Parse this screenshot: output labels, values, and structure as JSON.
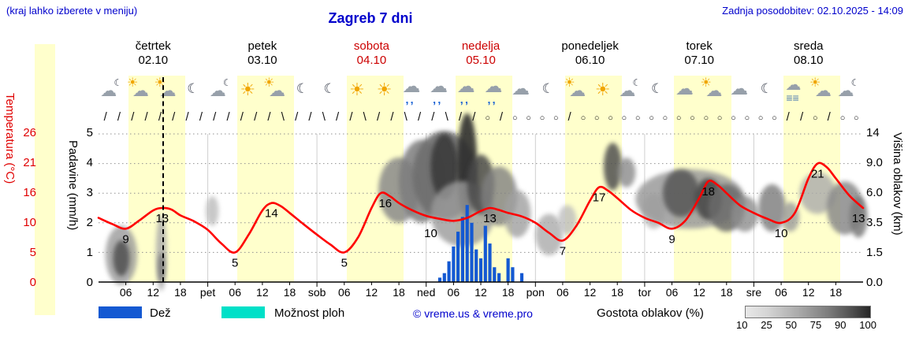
{
  "header": {
    "hint": "(kraj lahko izberete v meniju)",
    "title": "Zagreb 7 dni",
    "updated": "Zadnja posodobitev: 02.10.2025 - 14:09"
  },
  "colors": {
    "accent_blue": "#0000cc",
    "temp_red": "#ff0000",
    "day_band": "#ffffcc",
    "rain_blue": "#1459d2",
    "shower_cyan": "#00e0c8"
  },
  "days": [
    {
      "name": "četrtek",
      "date": "02.10",
      "color": "#000000"
    },
    {
      "name": "petek",
      "date": "03.10",
      "color": "#000000"
    },
    {
      "name": "sobota",
      "date": "04.10",
      "color": "#cc0000"
    },
    {
      "name": "nedelja",
      "date": "05.10",
      "color": "#cc0000"
    },
    {
      "name": "ponedeljek",
      "date": "06.10",
      "color": "#000000"
    },
    {
      "name": "torek",
      "date": "07.10",
      "color": "#000000"
    },
    {
      "name": "sreda",
      "date": "08.10",
      "color": "#000000"
    }
  ],
  "axes": {
    "temperature": {
      "label": "Temperatura (°C)",
      "ticks": [
        "26",
        "21",
        "16",
        "10",
        "5",
        "0"
      ]
    },
    "precip": {
      "label": "Padavine (mm/h)",
      "ticks": [
        "5",
        "4",
        "3",
        "2",
        "1",
        "0"
      ]
    },
    "cloud_height": {
      "label": "Višina oblakov (km)",
      "ticks": [
        "14",
        "9.0",
        "6.0",
        "3.5",
        "1.5",
        "0.0"
      ]
    }
  },
  "legend": {
    "rain_label": "Dež",
    "shower_label": "Možnost ploh",
    "copyright": "© vreme.us & vreme.pro",
    "cloud_density_label": "Gostota oblakov (%)",
    "cloud_density_ticks": [
      "10",
      "25",
      "50",
      "75",
      "90",
      "100"
    ]
  },
  "icons": [
    "cloud-moon",
    "sun-cloud",
    "sun-cloud",
    "moon",
    "cloud-moon",
    "sun",
    "sun-cloud",
    "moon",
    "moon",
    "sun",
    "sun",
    "rain-cloud",
    "rain-cloud",
    "rain-cloud",
    "rain-cloud",
    "cloud",
    "moon",
    "sun-cloud",
    "sun",
    "cloud-moon",
    "moon",
    "cloud",
    "sun-cloud",
    "cloud",
    "moon",
    "fog-cloud",
    "sun-cloud",
    "cloud-moon"
  ],
  "winds": [
    "/",
    "/",
    "/",
    "/",
    "/",
    "/",
    "/",
    "/",
    "/",
    "/",
    "/",
    "/",
    "/",
    "\\",
    "/",
    "/",
    "\\",
    "/",
    "/",
    "\\",
    "/",
    "/",
    "\\",
    "/",
    "/",
    "\\",
    "/",
    "/",
    "○",
    "/",
    "○",
    "○",
    "○",
    "○",
    "/",
    "○",
    "○",
    "○",
    "○",
    "○",
    "○",
    "○",
    "○",
    "○",
    "○",
    "○",
    "○",
    "○",
    "○",
    "○",
    "/",
    "/",
    "○",
    "/",
    "○",
    "○"
  ],
  "chart_data": {
    "type": "meteogram",
    "title": "Zagreb 7 dni",
    "hours_total": 168,
    "now_hour": 14,
    "temp_axis_stops": [
      0,
      5,
      10,
      16,
      21,
      26
    ],
    "day_bands": [
      [
        6.5,
        19
      ],
      [
        30.5,
        43
      ],
      [
        54.5,
        67
      ],
      [
        78.5,
        91
      ],
      [
        102.5,
        115
      ],
      [
        126.5,
        139
      ],
      [
        150.5,
        163
      ]
    ],
    "x_ticks": [
      [
        6,
        "06"
      ],
      [
        12,
        "12"
      ],
      [
        18,
        "18"
      ],
      [
        24,
        "pet"
      ],
      [
        30,
        "06"
      ],
      [
        36,
        "12"
      ],
      [
        42,
        "18"
      ],
      [
        48,
        "sob"
      ],
      [
        54,
        "06"
      ],
      [
        60,
        "12"
      ],
      [
        66,
        "18"
      ],
      [
        72,
        "ned"
      ],
      [
        78,
        "06"
      ],
      [
        84,
        "12"
      ],
      [
        90,
        "18"
      ],
      [
        96,
        "pon"
      ],
      [
        102,
        "06"
      ],
      [
        108,
        "12"
      ],
      [
        114,
        "18"
      ],
      [
        120,
        "tor"
      ],
      [
        126,
        "06"
      ],
      [
        132,
        "12"
      ],
      [
        138,
        "18"
      ],
      [
        144,
        "sre"
      ],
      [
        150,
        "06"
      ],
      [
        156,
        "12"
      ],
      [
        162,
        "18"
      ]
    ],
    "temperature_series": {
      "unit": "°C",
      "points": [
        [
          0,
          11
        ],
        [
          3,
          9.8
        ],
        [
          6,
          9
        ],
        [
          9,
          10.5
        ],
        [
          12,
          12.5
        ],
        [
          14,
          13
        ],
        [
          16,
          12.7
        ],
        [
          18,
          11.5
        ],
        [
          21,
          10.3
        ],
        [
          24,
          8.8
        ],
        [
          27,
          6.5
        ],
        [
          30,
          5
        ],
        [
          33,
          8
        ],
        [
          36,
          12.5
        ],
        [
          38,
          14
        ],
        [
          40,
          13.4
        ],
        [
          42,
          12
        ],
        [
          45,
          9.8
        ],
        [
          48,
          8
        ],
        [
          51,
          6.3
        ],
        [
          54,
          5
        ],
        [
          57,
          7.5
        ],
        [
          60,
          13
        ],
        [
          62,
          16
        ],
        [
          64,
          15.4
        ],
        [
          66,
          14
        ],
        [
          69,
          12.5
        ],
        [
          72,
          11.4
        ],
        [
          75,
          10.8
        ],
        [
          78,
          10.4
        ],
        [
          81,
          11
        ],
        [
          84,
          12.4
        ],
        [
          86,
          13
        ],
        [
          88,
          12.6
        ],
        [
          90,
          12
        ],
        [
          93,
          11.3
        ],
        [
          96,
          10
        ],
        [
          99,
          8.3
        ],
        [
          102,
          7
        ],
        [
          105,
          9.5
        ],
        [
          108,
          14.5
        ],
        [
          110,
          17
        ],
        [
          112,
          16.4
        ],
        [
          114,
          15
        ],
        [
          117,
          12.6
        ],
        [
          120,
          11
        ],
        [
          123,
          10
        ],
        [
          126,
          9
        ],
        [
          129,
          10.5
        ],
        [
          132,
          15
        ],
        [
          134,
          18
        ],
        [
          136,
          17.4
        ],
        [
          138,
          16
        ],
        [
          141,
          13.5
        ],
        [
          144,
          12
        ],
        [
          147,
          10.8
        ],
        [
          150,
          10
        ],
        [
          153,
          12
        ],
        [
          156,
          18.5
        ],
        [
          158,
          21
        ],
        [
          160,
          20.4
        ],
        [
          162,
          18.5
        ],
        [
          165,
          15.5
        ],
        [
          168,
          13
        ]
      ]
    },
    "temperature_labels": [
      [
        6,
        9
      ],
      [
        14,
        13
      ],
      [
        30,
        5
      ],
      [
        38,
        14
      ],
      [
        54,
        5
      ],
      [
        63,
        16
      ],
      [
        73,
        10
      ],
      [
        86,
        13
      ],
      [
        102,
        7
      ],
      [
        110,
        17
      ],
      [
        126,
        9
      ],
      [
        134,
        18
      ],
      [
        150,
        10
      ],
      [
        158,
        21
      ],
      [
        167,
        13
      ]
    ],
    "precipitation_bars": {
      "unit": "mm/h",
      "bars": [
        [
          75,
          0.15
        ],
        [
          76,
          0.3
        ],
        [
          77,
          0.7
        ],
        [
          78,
          1.2
        ],
        [
          79,
          1.7
        ],
        [
          80,
          2.2
        ],
        [
          81,
          2.6
        ],
        [
          82,
          2.0
        ],
        [
          83,
          1.1
        ],
        [
          84,
          0.8
        ],
        [
          85,
          1.9
        ],
        [
          86,
          1.3
        ],
        [
          87,
          0.5
        ],
        [
          88,
          0.3
        ],
        [
          90,
          0.8
        ],
        [
          91,
          0.5
        ],
        [
          93,
          0.3
        ]
      ]
    },
    "cloud_blobs": [
      [
        5,
        0.9,
        3.5,
        1.0,
        "#9a9a9a",
        0.8
      ],
      [
        5,
        0.8,
        1.8,
        0.6,
        "#555555",
        0.9
      ],
      [
        13.8,
        1.0,
        1.2,
        1.3,
        "#aaaaaa",
        0.8
      ],
      [
        13.8,
        0.5,
        0.8,
        0.5,
        "#777777",
        0.8
      ],
      [
        25,
        2.4,
        1.4,
        0.5,
        "#bbbbbb",
        0.8
      ],
      [
        66,
        3.1,
        4.5,
        1.1,
        "#8a8a8a",
        0.85
      ],
      [
        71,
        3.4,
        5,
        1.4,
        "#7d7d7d",
        0.85
      ],
      [
        76,
        3.6,
        7,
        1.5,
        "#6e6e6e",
        0.9
      ],
      [
        76,
        3.9,
        3,
        1.1,
        "#3a3a3a",
        0.9
      ],
      [
        81,
        3.9,
        2.2,
        1.8,
        "#2e2e2e",
        0.9
      ],
      [
        80,
        2.3,
        7,
        1.1,
        "#9a9a9a",
        0.8
      ],
      [
        84,
        3.3,
        3,
        1.0,
        "#4a4a4a",
        0.85
      ],
      [
        88,
        2.9,
        4,
        1.0,
        "#808080",
        0.8
      ],
      [
        92,
        2.3,
        3,
        0.8,
        "#a0a0a0",
        0.8
      ],
      [
        99,
        1.6,
        3,
        0.7,
        "#ababab",
        0.8
      ],
      [
        103,
        2.1,
        2,
        0.5,
        "#bdbdbd",
        0.8
      ],
      [
        113,
        3.9,
        2,
        0.8,
        "#4f4f4f",
        0.85
      ],
      [
        116,
        3.7,
        2,
        0.5,
        "#8a8a8a",
        0.8
      ],
      [
        122,
        2.4,
        2.5,
        0.6,
        "#b5b5b5",
        0.8
      ],
      [
        130,
        2.8,
        12,
        1.0,
        "#9b9b9b",
        0.85
      ],
      [
        128,
        3.0,
        4,
        0.8,
        "#565656",
        0.85
      ],
      [
        134,
        2.8,
        3,
        0.7,
        "#454545",
        0.85
      ],
      [
        138,
        2.5,
        4,
        0.8,
        "#6b6b6b",
        0.85
      ],
      [
        142,
        2.3,
        3,
        0.6,
        "#8d8d8d",
        0.8
      ],
      [
        148,
        2.5,
        3,
        0.8,
        "#7a7a7a",
        0.8
      ],
      [
        152,
        2.2,
        2,
        0.5,
        "#9b9b9b",
        0.8
      ],
      [
        158,
        3.0,
        4,
        0.7,
        "#ababab",
        0.8
      ],
      [
        164,
        2.5,
        4,
        0.9,
        "#8a8a8a",
        0.85
      ],
      [
        167,
        2.2,
        2,
        0.7,
        "#7a7a7a",
        0.85
      ]
    ]
  }
}
